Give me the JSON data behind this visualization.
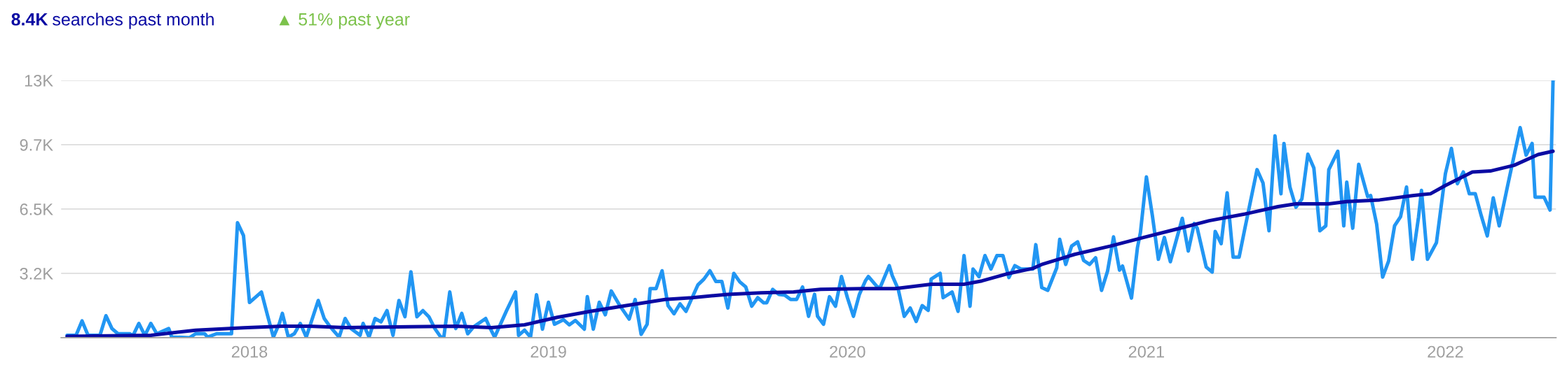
{
  "chart_data": {
    "type": "line",
    "title": "8.4K searches past month",
    "subtitle": "▲ 51% past year",
    "xlim": [
      2017.37,
      2022.37
    ],
    "xticks": [
      2018,
      2019,
      2020,
      2021,
      2022
    ],
    "ylim": [
      0,
      13000
    ],
    "yticks": [
      {
        "value": 3250,
        "label": "3.2K"
      },
      {
        "value": 6500,
        "label": "6.5K"
      },
      {
        "value": 9750,
        "label": "9.7K"
      },
      {
        "value": 13000,
        "label": "13K"
      }
    ],
    "grid": "y",
    "marker": "none",
    "line_style": "solid",
    "series": [
      {
        "color": "#2196f3",
        "x": [
          2017.39,
          2017.42,
          2017.44,
          2017.46,
          2017.5,
          2017.52,
          2017.54,
          2017.56,
          2017.6,
          2017.61,
          2017.63,
          2017.65,
          2017.67,
          2017.69,
          2017.73,
          2017.74,
          2017.8,
          2017.82,
          2017.85,
          2017.86,
          2017.89,
          2017.94,
          2017.96,
          2017.98,
          2018.0,
          2018.04,
          2018.06,
          2018.08,
          2018.1,
          2018.11,
          2018.13,
          2018.15,
          2018.17,
          2018.19,
          2018.23,
          2018.25,
          2018.27,
          2018.3,
          2018.32,
          2018.34,
          2018.37,
          2018.38,
          2018.4,
          2018.42,
          2018.44,
          2018.46,
          2018.48,
          2018.5,
          2018.52,
          2018.54,
          2018.56,
          2018.58,
          2018.6,
          2018.62,
          2018.64,
          2018.65,
          2018.67,
          2018.69,
          2018.71,
          2018.73,
          2018.75,
          2018.79,
          2018.8,
          2018.82,
          2018.86,
          2018.89,
          2018.9,
          2018.92,
          2018.94,
          2018.96,
          2018.98,
          2019.0,
          2019.02,
          2019.05,
          2019.07,
          2019.09,
          2019.12,
          2019.13,
          2019.15,
          2019.17,
          2019.19,
          2019.21,
          2019.24,
          2019.27,
          2019.29,
          2019.31,
          2019.33,
          2019.34,
          2019.36,
          2019.38,
          2019.4,
          2019.42,
          2019.44,
          2019.46,
          2019.5,
          2019.52,
          2019.54,
          2019.56,
          2019.58,
          2019.6,
          2019.62,
          2019.64,
          2019.66,
          2019.68,
          2019.7,
          2019.72,
          2019.73,
          2019.75,
          2019.77,
          2019.79,
          2019.81,
          2019.83,
          2019.85,
          2019.87,
          2019.89,
          2019.9,
          2019.92,
          2019.94,
          2019.96,
          2019.98,
          2020.0,
          2020.02,
          2020.04,
          2020.06,
          2020.07,
          2020.1,
          2020.11,
          2020.14,
          2020.15,
          2020.17,
          2020.19,
          2020.21,
          2020.23,
          2020.25,
          2020.27,
          2020.28,
          2020.31,
          2020.32,
          2020.35,
          2020.37,
          2020.39,
          2020.41,
          2020.42,
          2020.44,
          2020.46,
          2020.48,
          2020.5,
          2020.52,
          2020.54,
          2020.56,
          2020.58,
          2020.62,
          2020.63,
          2020.65,
          2020.67,
          2020.7,
          2020.71,
          2020.73,
          2020.75,
          2020.77,
          2020.79,
          2020.81,
          2020.83,
          2020.85,
          2020.87,
          2020.89,
          2020.91,
          2020.92,
          2020.95,
          2020.97,
          2020.98,
          2021.0,
          2021.02,
          2021.04,
          2021.06,
          2021.08,
          2021.12,
          2021.14,
          2021.16,
          2021.17,
          2021.2,
          2021.22,
          2021.23,
          2021.25,
          2021.27,
          2021.29,
          2021.31,
          2021.33,
          2021.37,
          2021.39,
          2021.41,
          2021.43,
          2021.45,
          2021.46,
          2021.48,
          2021.5,
          2021.52,
          2021.54,
          2021.56,
          2021.58,
          2021.6,
          2021.61,
          2021.64,
          2021.66,
          2021.67,
          2021.69,
          2021.71,
          2021.74,
          2021.75,
          2021.77,
          2021.79,
          2021.81,
          2021.83,
          2021.85,
          2021.87,
          2021.89,
          2021.91,
          2021.92,
          2021.94,
          2021.97,
          2022.0,
          2022.02,
          2022.04,
          2022.06,
          2022.08,
          2022.1,
          2022.12,
          2022.14,
          2022.16,
          2022.18,
          2022.21,
          2022.25,
          2022.27,
          2022.29,
          2022.3,
          2022.33,
          2022.35,
          2022.36
        ],
        "values": [
          120,
          120,
          850,
          120,
          120,
          1110,
          460,
          200,
          200,
          90,
          720,
          120,
          720,
          200,
          460,
          30,
          0,
          200,
          200,
          30,
          200,
          200,
          5810,
          5160,
          1780,
          2310,
          1150,
          30,
          720,
          1230,
          30,
          200,
          720,
          30,
          1880,
          970,
          550,
          30,
          970,
          460,
          120,
          720,
          30,
          970,
          800,
          1370,
          120,
          1880,
          1060,
          3330,
          1060,
          1370,
          1060,
          460,
          30,
          30,
          2310,
          460,
          1230,
          200,
          550,
          970,
          630,
          30,
          1370,
          2310,
          120,
          380,
          30,
          2170,
          430,
          1790,
          680,
          910,
          650,
          870,
          430,
          2070,
          430,
          1790,
          1160,
          2360,
          1590,
          940,
          1930,
          170,
          680,
          2480,
          2480,
          3380,
          1620,
          1210,
          1710,
          1330,
          2670,
          2960,
          3380,
          2840,
          2840,
          1500,
          3250,
          2820,
          2560,
          1590,
          2020,
          1760,
          1760,
          2440,
          2190,
          2150,
          1930,
          1930,
          2560,
          1080,
          2190,
          1080,
          680,
          2070,
          1590,
          3090,
          2020,
          1080,
          2190,
          2870,
          3090,
          2560,
          2560,
          3640,
          3130,
          2440,
          1080,
          1500,
          820,
          1620,
          1380,
          2960,
          3250,
          2020,
          2310,
          1330,
          4150,
          1590,
          3470,
          3080,
          4150,
          3470,
          4150,
          4150,
          3040,
          3640,
          3470,
          3470,
          4700,
          2530,
          2390,
          3530,
          4970,
          3700,
          4630,
          4840,
          3900,
          3700,
          4040,
          2390,
          3360,
          5090,
          3410,
          3620,
          2000,
          4550,
          5310,
          8120,
          6160,
          3960,
          5060,
          3840,
          6030,
          4380,
          5770,
          5530,
          3570,
          3310,
          5370,
          4750,
          7320,
          4070,
          4070,
          5570,
          8490,
          7810,
          5400,
          10200,
          7270,
          9810,
          7610,
          6590,
          7010,
          9270,
          8570,
          5400,
          5650,
          8490,
          9420,
          5650,
          7860,
          5530,
          8760,
          7130,
          7180,
          5740,
          3060,
          3870,
          5650,
          6110,
          7610,
          3960,
          6080,
          7440,
          3960,
          4800,
          8290,
          9560,
          7780,
          8370,
          7270,
          7270,
          6160,
          5140,
          7060,
          5650,
          7810,
          10610,
          9220,
          9810,
          7100,
          7100,
          6450,
          13000
        ]
      },
      {
        "color": "#0b0ba3",
        "x": [
          2017.39,
          2017.67,
          2017.82,
          2017.98,
          2018.11,
          2018.2,
          2018.32,
          2018.54,
          2018.69,
          2018.81,
          2018.92,
          2019.03,
          2019.14,
          2019.26,
          2019.39,
          2019.48,
          2019.6,
          2019.71,
          2019.82,
          2019.91,
          2020.05,
          2020.16,
          2020.28,
          2020.39,
          2020.45,
          2020.53,
          2020.62,
          2020.65,
          2020.76,
          2020.88,
          2020.99,
          2021.1,
          2021.21,
          2021.33,
          2021.44,
          2021.5,
          2021.61,
          2021.67,
          2021.78,
          2021.89,
          2021.95,
          2022.0,
          2022.09,
          2022.15,
          2022.23,
          2022.31,
          2022.36
        ],
        "values": [
          70,
          120,
          380,
          500,
          580,
          580,
          510,
          550,
          580,
          510,
          650,
          1030,
          1330,
          1620,
          1930,
          2020,
          2190,
          2270,
          2310,
          2440,
          2480,
          2480,
          2700,
          2700,
          2870,
          3210,
          3500,
          3700,
          4210,
          4630,
          5060,
          5480,
          5910,
          6250,
          6620,
          6760,
          6760,
          6880,
          6960,
          7180,
          7270,
          7690,
          8370,
          8420,
          8710,
          9250,
          9420
        ]
      }
    ]
  }
}
